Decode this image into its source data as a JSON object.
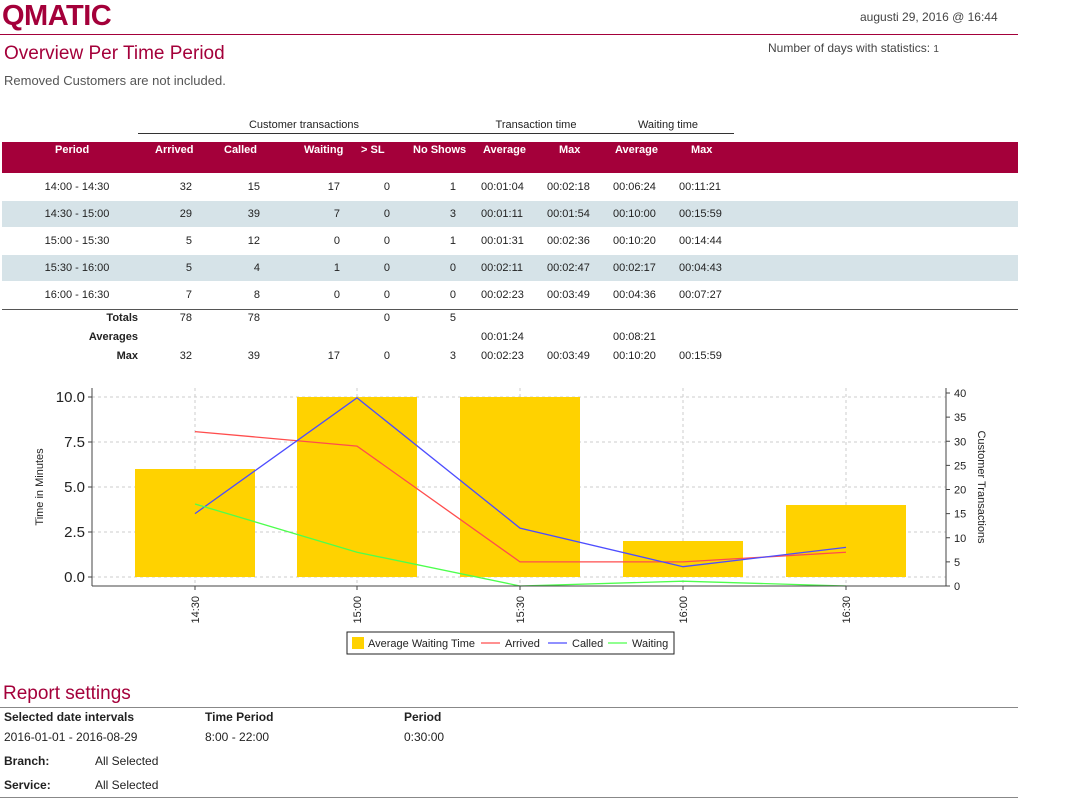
{
  "header": {
    "logo": "QMATIC",
    "datetime": "augusti 29, 2016 @ 16:44",
    "title": "Overview Per Time Period",
    "days_label": "Number of days with statistics:",
    "days_value": "1",
    "note": "Removed Customers are not included."
  },
  "table": {
    "groups": {
      "customer": "Customer transactions",
      "transaction": "Transaction time",
      "waiting": "Waiting time"
    },
    "columns": [
      "Period",
      "Arrived",
      "Called",
      "Waiting",
      "> SL",
      "No Shows",
      "Average",
      "Max",
      "Average",
      "Max"
    ],
    "rows": [
      [
        "14:00 - 14:30",
        "32",
        "15",
        "17",
        "0",
        "1",
        "00:01:04",
        "00:02:18",
        "00:06:24",
        "00:11:21"
      ],
      [
        "14:30 - 15:00",
        "29",
        "39",
        "7",
        "0",
        "3",
        "00:01:11",
        "00:01:54",
        "00:10:00",
        "00:15:59"
      ],
      [
        "15:00 - 15:30",
        "5",
        "12",
        "0",
        "0",
        "1",
        "00:01:31",
        "00:02:36",
        "00:10:20",
        "00:14:44"
      ],
      [
        "15:30 - 16:00",
        "5",
        "4",
        "1",
        "0",
        "0",
        "00:02:11",
        "00:02:47",
        "00:02:17",
        "00:04:43"
      ],
      [
        "16:00 - 16:30",
        "7",
        "8",
        "0",
        "0",
        "0",
        "00:02:23",
        "00:03:49",
        "00:04:36",
        "00:07:27"
      ]
    ],
    "totals": {
      "label": "Totals",
      "arrived": "78",
      "called": "78",
      "sl": "0",
      "noshows": "5"
    },
    "averages": {
      "label": "Averages",
      "trans_avg": "00:01:24",
      "wait_avg": "00:08:21"
    },
    "max": {
      "label": "Max",
      "arrived": "32",
      "called": "39",
      "waiting": "17",
      "sl": "0",
      "noshows": "3",
      "trans_avg": "00:02:23",
      "trans_max": "00:03:49",
      "wait_avg": "00:10:20",
      "wait_max": "00:15:59"
    }
  },
  "chart_data": {
    "type": "bar",
    "categories": [
      "14:30",
      "15:00",
      "15:30",
      "16:00",
      "16:30"
    ],
    "ylabel": "Time in Minutes",
    "y2label": "Customer Transactions",
    "ylim": [
      -0.5,
      10.5
    ],
    "y2lim": [
      0,
      40
    ],
    "yticks": [
      "0.0",
      "2.5",
      "5.0",
      "7.5",
      "10.0"
    ],
    "y2ticks": [
      "0",
      "5",
      "10",
      "15",
      "20",
      "25",
      "30",
      "35",
      "40"
    ],
    "grid": true,
    "legend_position": "bottom-center",
    "series": [
      {
        "name": "Average Waiting Time",
        "kind": "bar",
        "axis": "left",
        "color": "#ffd200",
        "values": [
          6.0,
          10.0,
          10.0,
          2.0,
          4.0
        ]
      },
      {
        "name": "Arrived",
        "kind": "line",
        "axis": "right",
        "color": "#ff4d4d",
        "values": [
          32,
          29,
          5,
          5,
          7
        ]
      },
      {
        "name": "Called",
        "kind": "line",
        "axis": "right",
        "color": "#4d4dff",
        "values": [
          15,
          39,
          12,
          4,
          8
        ]
      },
      {
        "name": "Waiting",
        "kind": "line",
        "axis": "right",
        "color": "#4dff4d",
        "values": [
          17,
          7,
          0,
          1,
          0
        ]
      }
    ]
  },
  "report_settings": {
    "title": "Report settings",
    "date_label": "Selected date intervals",
    "date_value": "2016-01-01 - 2016-08-29",
    "time_label": "Time Period",
    "time_value": "8:00 - 22:00",
    "period_label": "Period",
    "period_value": "0:30:00",
    "branch_label": "Branch:",
    "branch_value": "All Selected",
    "service_label": "Service:",
    "service_value": "All Selected"
  },
  "colors": {
    "brand": "#a4003a",
    "row_alt": "#d6e3e8",
    "bar": "#ffd200"
  }
}
